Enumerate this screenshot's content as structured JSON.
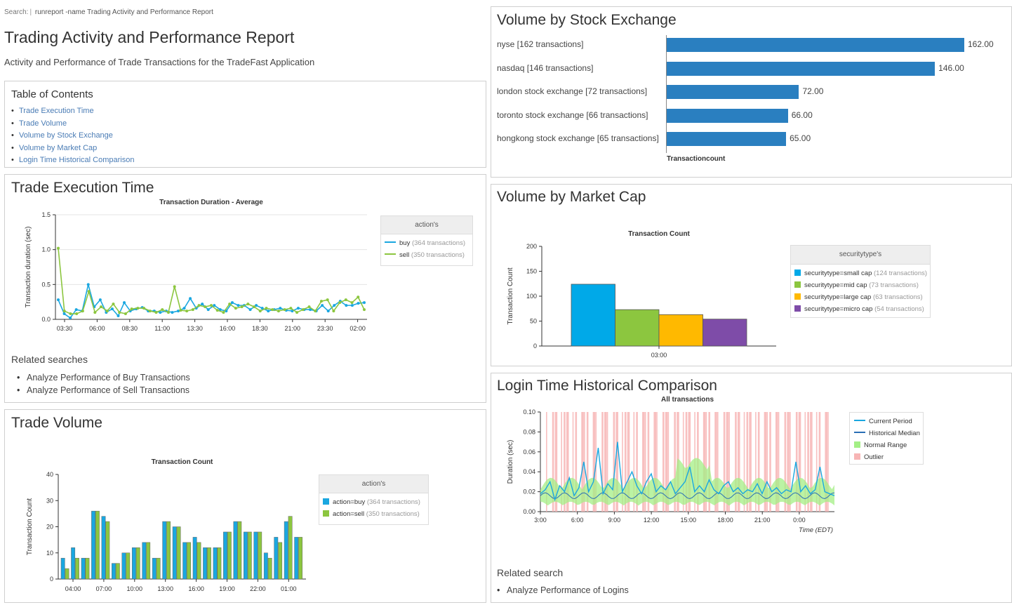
{
  "search": {
    "label": "Search:",
    "command": "runreport -name Trading Activity and Performance Report"
  },
  "report": {
    "title": "Trading Activity and Performance Report",
    "description": "Activity and Performance of Trade Transactions for the TradeFast Application"
  },
  "toc": {
    "title": "Table of Contents",
    "items": [
      "Trade Execution Time",
      "Trade Volume",
      "Volume by Stock Exchange",
      "Volume by Market Cap",
      "Login Time Historical Comparison"
    ]
  },
  "exec_panel": {
    "title": "Trade Execution Time",
    "related_title": "Related searches",
    "related": [
      "Analyze Performance of Buy Transactions",
      "Analyze Performance of Sell Transactions"
    ],
    "legend": {
      "title": "action's",
      "items": [
        {
          "name": "buy",
          "count": "(364 transactions)",
          "color": "#1aa7e0"
        },
        {
          "name": "sell",
          "count": "(350 transactions)",
          "color": "#8cc63f"
        }
      ]
    }
  },
  "volume_panel": {
    "title": "Trade Volume",
    "legend": {
      "title": "action's",
      "items": [
        {
          "name": "action=buy",
          "count": "(364 transactions)",
          "color": "#1aa7e0"
        },
        {
          "name": "action=sell",
          "count": "(350 transactions)",
          "color": "#8cc63f"
        }
      ]
    }
  },
  "exchange_panel": {
    "title": "Volume by Stock Exchange"
  },
  "marketcap_panel": {
    "title": "Volume by Market Cap",
    "legend": {
      "title": "securitytype's",
      "items": [
        {
          "name": "securitytype=small cap",
          "count": "(124 transactions)",
          "color": "#00a9e8"
        },
        {
          "name": "securitytype=mid cap",
          "count": "(73 transactions)",
          "color": "#8cc63f"
        },
        {
          "name": "securitytype=large cap",
          "count": "(63 transactions)",
          "color": "#ffb900"
        },
        {
          "name": "securitytype=micro cap",
          "count": "(54 transactions)",
          "color": "#7e4ca8"
        }
      ]
    }
  },
  "login_panel": {
    "title": "Login Time Historical Comparison",
    "related_title": "Related search",
    "related": [
      "Analyze Performance of Logins"
    ],
    "legend": {
      "items": [
        {
          "name": "Current Period",
          "color": "#1aa7e0",
          "kind": "line"
        },
        {
          "name": "Historical Median",
          "color": "#2a6fb5",
          "kind": "line"
        },
        {
          "name": "Normal Range",
          "color": "#a4ef86",
          "kind": "box"
        },
        {
          "name": "Outlier",
          "color": "#f7b5b5",
          "kind": "box"
        }
      ]
    }
  },
  "chart_data": [
    {
      "id": "exec",
      "type": "line",
      "title": "Transaction Duration - Average",
      "xlabel": "",
      "ylabel": "Transaction duration (sec)",
      "ylim": [
        0,
        1.5
      ],
      "yticks": [
        "0.0",
        "0.5",
        "1.0",
        "1.5"
      ],
      "x_ticks": [
        "03:30",
        "06:00",
        "08:30",
        "11:00",
        "13:30",
        "16:00",
        "18:30",
        "21:00",
        "23:30",
        "02:00"
      ],
      "series": [
        {
          "name": "buy",
          "color": "#1aa7e0",
          "values": [
            0.28,
            0.08,
            0.02,
            0.14,
            0.12,
            0.5,
            0.18,
            0.28,
            0.1,
            0.15,
            0.05,
            0.24,
            0.12,
            0.15,
            0.17,
            0.12,
            0.12,
            0.1,
            0.12,
            0.1,
            0.12,
            0.16,
            0.3,
            0.16,
            0.22,
            0.14,
            0.2,
            0.14,
            0.12,
            0.24,
            0.2,
            0.2,
            0.14,
            0.2,
            0.16,
            0.12,
            0.14,
            0.16,
            0.13,
            0.12,
            0.16,
            0.14,
            0.14,
            0.12,
            0.2,
            0.12,
            0.2,
            0.26,
            0.2,
            0.2,
            0.23,
            0.24
          ]
        },
        {
          "name": "sell",
          "color": "#8cc63f",
          "values": [
            1.02,
            0.12,
            0.08,
            0.08,
            0.12,
            0.4,
            0.1,
            0.18,
            0.12,
            0.22,
            0.1,
            0.08,
            0.15,
            0.16,
            0.16,
            0.12,
            0.1,
            0.14,
            0.1,
            0.47,
            0.13,
            0.12,
            0.14,
            0.2,
            0.18,
            0.2,
            0.13,
            0.1,
            0.22,
            0.16,
            0.18,
            0.22,
            0.18,
            0.12,
            0.16,
            0.14,
            0.12,
            0.14,
            0.16,
            0.1,
            0.14,
            0.18,
            0.12,
            0.26,
            0.28,
            0.12,
            0.24,
            0.28,
            0.24,
            0.32,
            0.14
          ]
        }
      ]
    },
    {
      "id": "volume",
      "type": "bar",
      "title": "Transaction Count",
      "xlabel": "",
      "ylabel": "Transaction Count",
      "ylim": [
        0,
        40
      ],
      "yticks": [
        "0",
        "10",
        "20",
        "30",
        "40"
      ],
      "x_ticks": [
        "04:00",
        "07:00",
        "10:00",
        "13:00",
        "16:00",
        "19:00",
        "22:00",
        "01:00"
      ],
      "series": [
        {
          "name": "action=buy",
          "color": "#1aa7e0",
          "values": [
            8,
            12,
            8,
            26,
            24,
            6,
            10,
            12,
            14,
            8,
            22,
            20,
            14,
            16,
            12,
            12,
            18,
            22,
            18,
            18,
            10,
            16,
            22,
            16
          ]
        },
        {
          "name": "action=sell",
          "color": "#8cc63f",
          "values": [
            4,
            8,
            8,
            26,
            22,
            6,
            10,
            12,
            14,
            8,
            22,
            20,
            14,
            14,
            12,
            12,
            18,
            22,
            18,
            18,
            8,
            14,
            24,
            16
          ]
        }
      ]
    },
    {
      "id": "exchange",
      "type": "bar",
      "orientation": "horizontal",
      "title": "",
      "xlabel": "Transactioncount",
      "categories": [
        "nyse [162 transactions]",
        "nasdaq [146 transactions]",
        "london stock exchange [72 transactions]",
        "toronto stock exchange [66 transactions]",
        "hongkong stock exchange [65 transactions]"
      ],
      "values": [
        162,
        146,
        72,
        66,
        65
      ],
      "value_labels": [
        "162.00",
        "146.00",
        "72.00",
        "66.00",
        "65.00"
      ],
      "color": "#2a7fc0"
    },
    {
      "id": "marketcap",
      "type": "bar",
      "title": "Transaction Count",
      "ylabel": "Transaction Count",
      "ylim": [
        0,
        200
      ],
      "yticks": [
        "0",
        "50",
        "100",
        "150",
        "200"
      ],
      "categories": [
        "03:00"
      ],
      "series": [
        {
          "name": "securitytype=small cap",
          "values": [
            124
          ],
          "color": "#00a9e8"
        },
        {
          "name": "securitytype=mid cap",
          "values": [
            73
          ],
          "color": "#8cc63f"
        },
        {
          "name": "securitytype=large cap",
          "values": [
            63
          ],
          "color": "#ffb900"
        },
        {
          "name": "securitytype=micro cap",
          "values": [
            54
          ],
          "color": "#7e4ca8"
        }
      ]
    },
    {
      "id": "login",
      "type": "line",
      "title": "All transactions",
      "xlabel": "Time (EDT)",
      "ylabel": "Duration (sec)",
      "ylim": [
        0,
        0.1
      ],
      "yticks": [
        "0.00",
        "0.02",
        "0.04",
        "0.06",
        "0.08",
        "0.10"
      ],
      "x_ticks": [
        "3:00",
        "6:00",
        "9:00",
        "12:00",
        "15:00",
        "18:00",
        "21:00",
        "0:00"
      ],
      "series": [
        {
          "name": "Current Period",
          "values": [
            0.018,
            0.022,
            0.03,
            0.012,
            0.026,
            0.02,
            0.034,
            0.016,
            0.024,
            0.05,
            0.02,
            0.03,
            0.064,
            0.018,
            0.028,
            0.022,
            0.07,
            0.02,
            0.03,
            0.04,
            0.026,
            0.018,
            0.03,
            0.038,
            0.02,
            0.026,
            0.022,
            0.03,
            0.018,
            0.024,
            0.03,
            0.045,
            0.02,
            0.026,
            0.02,
            0.032,
            0.022,
            0.018,
            0.026,
            0.03,
            0.02,
            0.024,
            0.018,
            0.022,
            0.02,
            0.028,
            0.018,
            0.03,
            0.02,
            0.024,
            0.018,
            0.022,
            0.02,
            0.05,
            0.02,
            0.026,
            0.018,
            0.022,
            0.045,
            0.02,
            0.018,
            0.016
          ]
        }
      ]
    }
  ]
}
